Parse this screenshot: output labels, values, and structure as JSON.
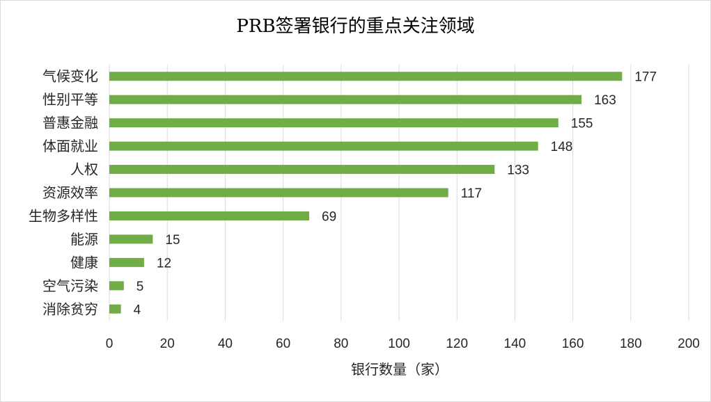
{
  "chart_data": {
    "type": "bar",
    "orientation": "horizontal",
    "title": "PRB签署银行的重点关注领域",
    "xlabel": "银行数量（家）",
    "ylabel": "",
    "categories": [
      "气候变化",
      "性别平等",
      "普惠金融",
      "体面就业",
      "人权",
      "资源效率",
      "生物多样性",
      "能源",
      "健康",
      "空气污染",
      "消除贫穷"
    ],
    "values": [
      177,
      163,
      155,
      148,
      133,
      117,
      69,
      15,
      12,
      5,
      4
    ],
    "xlim": [
      0,
      200
    ],
    "xticks": [
      0,
      20,
      40,
      60,
      80,
      100,
      120,
      140,
      160,
      180,
      200
    ],
    "grid": true,
    "legend": "none",
    "data_labels": true,
    "bar_color": "#70ad47",
    "grid_color": "#d9d9d9"
  }
}
